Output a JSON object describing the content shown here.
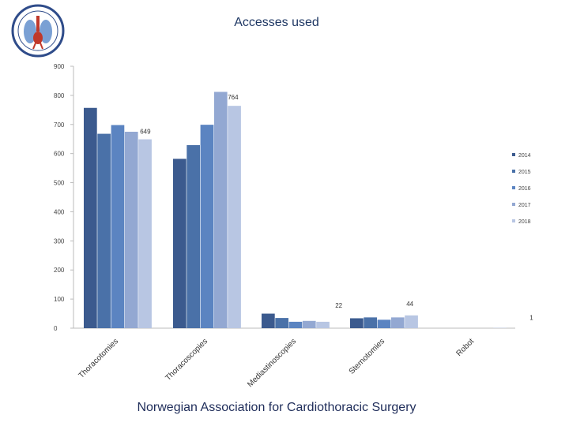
{
  "page": {
    "footer": "Norwegian Association for Cardiothoracic Surgery"
  },
  "logo": {
    "ring_text": "NORSK THORAXKIRURGISK FORENING"
  },
  "chart_data": {
    "type": "bar",
    "title": "Accesses used",
    "xlabel": "",
    "ylabel": "",
    "ylim": [
      0,
      900
    ],
    "yticks": [
      0,
      100,
      200,
      300,
      400,
      500,
      600,
      700,
      800,
      900
    ],
    "grid": false,
    "legend_position": "right",
    "categories": [
      "Thoracotomies",
      "Thoracoscopies",
      "Mediastinoscopies",
      "Sternotomies",
      "Robot"
    ],
    "series": [
      {
        "name": "2014",
        "color": "#3b5a8e",
        "values": [
          757,
          582,
          50,
          34,
          0
        ]
      },
      {
        "name": "2015",
        "color": "#4a71a8",
        "values": [
          668,
          629,
          35,
          37,
          0
        ]
      },
      {
        "name": "2016",
        "color": "#5b84c1",
        "values": [
          698,
          699,
          22,
          29,
          0
        ]
      },
      {
        "name": "2017",
        "color": "#93a8d2",
        "values": [
          675,
          812,
          25,
          37,
          0
        ]
      },
      {
        "name": "2018",
        "color": "#b8c6e3",
        "values": [
          649,
          764,
          22,
          44,
          1
        ]
      }
    ],
    "data_labels": [
      {
        "series": "2018",
        "category": "Thoracotomies",
        "text": "649"
      },
      {
        "series": "2018",
        "category": "Thoracoscopies",
        "text": "764"
      },
      {
        "series": "2018",
        "category": "Mediastinoscopies",
        "text": "22"
      },
      {
        "series": "2018",
        "category": "Sternotomies",
        "text": "44"
      },
      {
        "series": "2018",
        "category": "Robot",
        "text": "1"
      }
    ]
  }
}
